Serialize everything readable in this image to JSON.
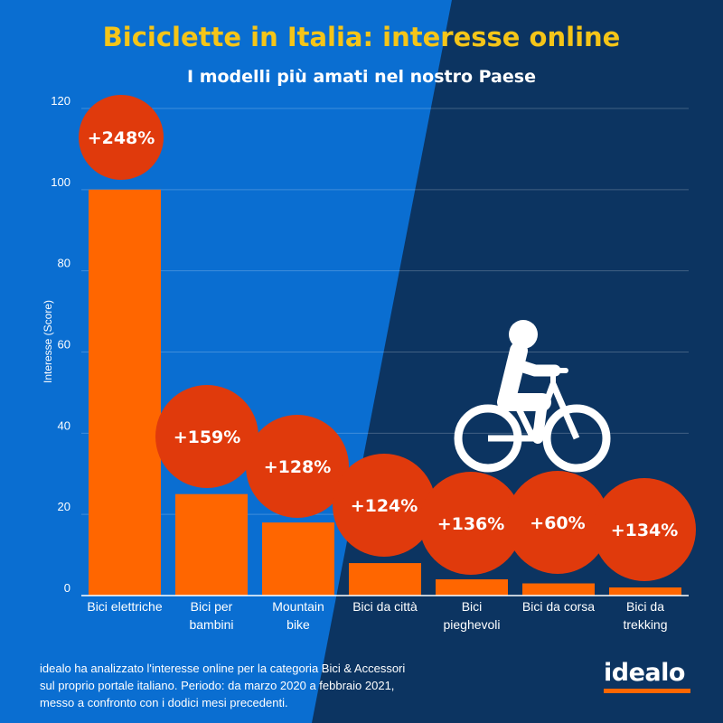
{
  "title": "Biciclette in Italia: interesse online",
  "subtitle": "I modelli più amati nel nostro Paese",
  "colors": {
    "background_left": "#0a6ed1",
    "background_right": "#0c3461",
    "bar": "#ff6600",
    "bubble": "#e03a0c",
    "title": "#f5c518",
    "text": "#ffffff",
    "logo_underline": "#ff6600"
  },
  "chart_data": {
    "type": "bar",
    "ylabel": "Interesse (Score)",
    "ylim": [
      0,
      120
    ],
    "yticks": [
      "0",
      "20",
      "40",
      "60",
      "80",
      "100",
      "120"
    ],
    "grid": true,
    "categories": [
      [
        "Bici elettriche"
      ],
      [
        "Bici per",
        "bambini"
      ],
      [
        "Mountain",
        "bike"
      ],
      [
        "Bici da città"
      ],
      [
        "Bici",
        "pieghevoli"
      ],
      [
        "Bici da corsa"
      ],
      [
        "Bici da",
        "trekking"
      ]
    ],
    "values": [
      100,
      25,
      18,
      8,
      4,
      3,
      2
    ],
    "annotations": [
      "+248%",
      "+159%",
      "+128%",
      "+124%",
      "+136%",
      "+60%",
      "+134%"
    ]
  },
  "cyclist_icon": "cyclist-icon",
  "footnote": [
    "idealo ha analizzato l'interesse online per la categoria Bici & Accessori",
    "sul proprio portale italiano. Periodo: da marzo 2020 a febbraio 2021,",
    "messo a confronto con i dodici mesi precedenti."
  ],
  "logo": "idealo"
}
